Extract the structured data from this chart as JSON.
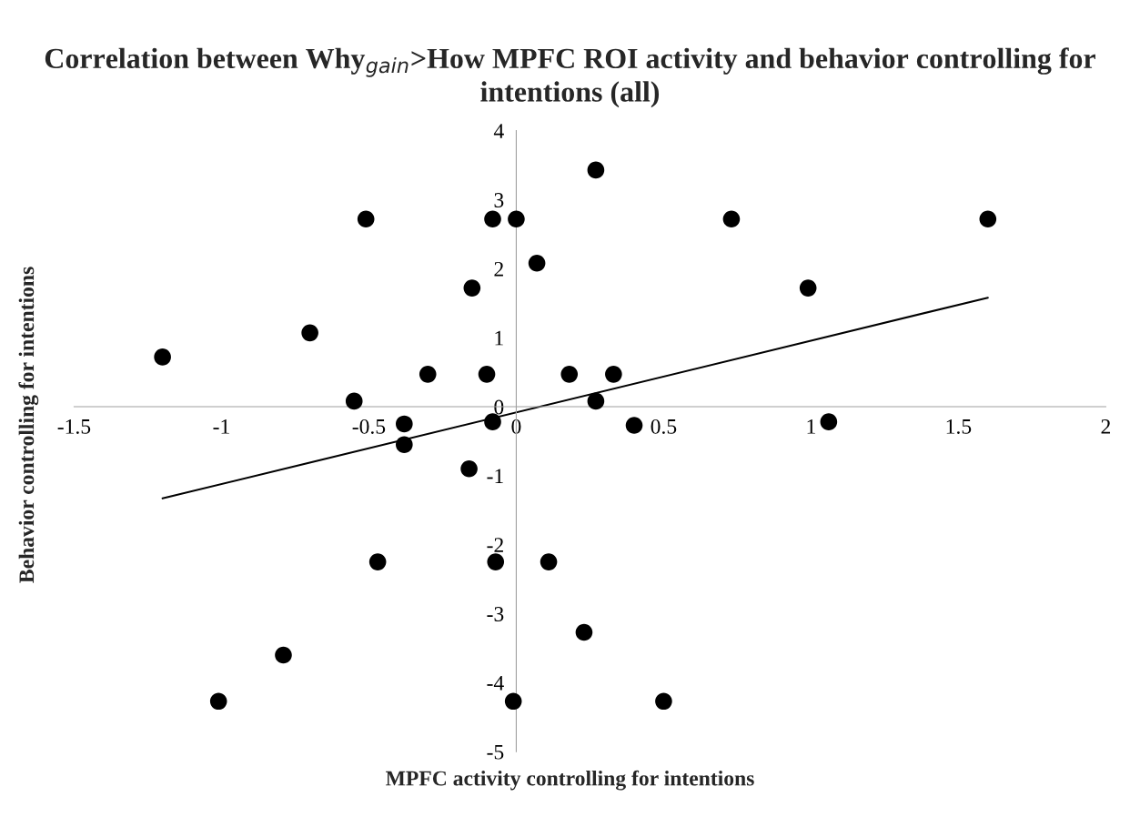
{
  "chart_data": {
    "type": "scatter",
    "title": "Correlation between Why$_{gain}$>How MPFC ROI activity and behavior controlling for intentions (all)",
    "xlabel": "MPFC activity controlling for intentions",
    "ylabel": "Behavior controlling for intentions",
    "series": [
      {
        "color": "#000000",
        "marker": "circle",
        "x": [
          -1.2,
          -1.01,
          -0.79,
          -0.7,
          -0.55,
          -0.51,
          -0.47,
          -0.38,
          -0.38,
          -0.3,
          -0.15,
          -0.16,
          -0.1,
          -0.08,
          -0.08,
          -0.07,
          0.0,
          -0.01,
          0.07,
          0.11,
          0.18,
          0.23,
          0.27,
          0.27,
          0.33,
          0.4,
          0.5,
          0.73,
          0.99,
          1.06,
          1.6
        ],
        "values": [
          0.72,
          -4.27,
          -3.6,
          1.07,
          0.08,
          2.72,
          -2.25,
          -0.25,
          -0.55,
          0.47,
          1.72,
          -0.9,
          0.47,
          2.72,
          -0.22,
          -2.25,
          2.72,
          -4.27,
          2.08,
          -2.25,
          0.47,
          -3.27,
          3.43,
          0.08,
          0.47,
          -0.27,
          -4.27,
          2.72,
          1.72,
          -0.22,
          2.72
        ]
      },
      {
        "type": "line",
        "color": "#000000",
        "line_style": "solid",
        "x": [
          -1.2,
          1.6
        ],
        "values": [
          -1.33,
          1.58
        ]
      }
    ],
    "xlim": [
      -1.5,
      2
    ],
    "ylim": [
      -5,
      4
    ],
    "xticks": [
      -1.5,
      -1,
      -0.5,
      0,
      0.5,
      1,
      1.5,
      2
    ],
    "yticks": [
      -5,
      -4,
      -3,
      -2,
      -1,
      0,
      1,
      2,
      3,
      4
    ],
    "grid": false,
    "legend": false
  }
}
